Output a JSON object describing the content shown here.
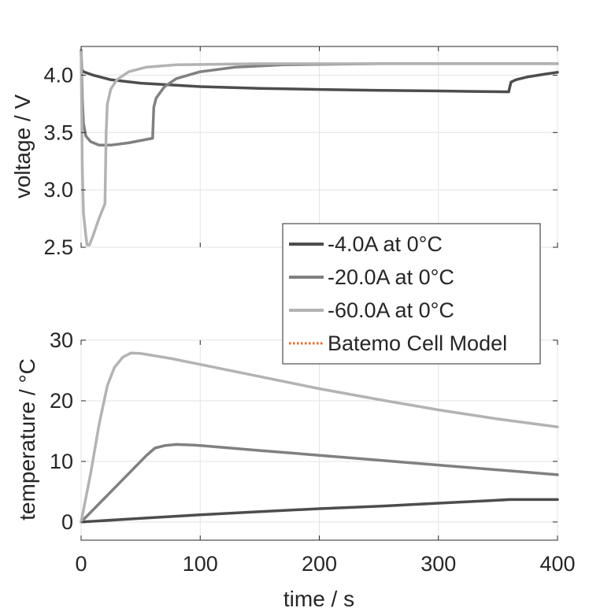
{
  "chart_data": [
    {
      "type": "line",
      "ylabel": "voltage / V",
      "xlabel": "",
      "xlim": [
        0,
        400
      ],
      "ylim": [
        2.5,
        4.25
      ],
      "grid": true,
      "xticks": [
        0,
        100,
        200,
        300,
        400
      ],
      "yticks": [
        2.5,
        3.0,
        3.5,
        4.0
      ],
      "ytick_labels": [
        "2.5",
        "3.0",
        "3.5",
        "4.0"
      ],
      "series": [
        {
          "name": "-4.0A at 0°C",
          "color": "#4d4d4d",
          "points": [
            [
              0,
              4.22
            ],
            [
              0.5,
              4.05
            ],
            [
              2,
              4.03
            ],
            [
              10,
              4.0
            ],
            [
              25,
              3.96
            ],
            [
              50,
              3.93
            ],
            [
              100,
              3.9
            ],
            [
              150,
              3.885
            ],
            [
              200,
              3.875
            ],
            [
              250,
              3.868
            ],
            [
              300,
              3.862
            ],
            [
              330,
              3.858
            ],
            [
              359,
              3.855
            ],
            [
              360,
              3.9
            ],
            [
              361,
              3.94
            ],
            [
              365,
              3.96
            ],
            [
              375,
              3.985
            ],
            [
              390,
              4.01
            ],
            [
              400,
              4.025
            ]
          ]
        },
        {
          "name": "-20.0A at 0°C",
          "color": "#808080",
          "points": [
            [
              0,
              4.22
            ],
            [
              1,
              3.8
            ],
            [
              2,
              3.58
            ],
            [
              4,
              3.47
            ],
            [
              8,
              3.42
            ],
            [
              15,
              3.39
            ],
            [
              25,
              3.39
            ],
            [
              40,
              3.41
            ],
            [
              55,
              3.44
            ],
            [
              60,
              3.45
            ],
            [
              61,
              3.72
            ],
            [
              63,
              3.8
            ],
            [
              70,
              3.9
            ],
            [
              80,
              3.97
            ],
            [
              100,
              4.03
            ],
            [
              130,
              4.07
            ],
            [
              170,
              4.09
            ],
            [
              250,
              4.1
            ],
            [
              400,
              4.1
            ]
          ]
        },
        {
          "name": "-60.0A at 0°C",
          "color": "#b3b3b3",
          "points": [
            [
              0,
              4.22
            ],
            [
              1,
              3.2
            ],
            [
              2,
              2.8
            ],
            [
              4,
              2.6
            ],
            [
              5,
              2.52
            ],
            [
              7,
              2.52
            ],
            [
              10,
              2.6
            ],
            [
              15,
              2.75
            ],
            [
              20,
              2.88
            ],
            [
              21,
              3.5
            ],
            [
              22,
              3.75
            ],
            [
              25,
              3.88
            ],
            [
              30,
              3.96
            ],
            [
              40,
              4.03
            ],
            [
              55,
              4.07
            ],
            [
              80,
              4.09
            ],
            [
              150,
              4.1
            ],
            [
              400,
              4.1
            ]
          ]
        }
      ]
    },
    {
      "type": "line",
      "ylabel": "temperature / °C",
      "xlabel": "time / s",
      "xlim": [
        0,
        400
      ],
      "ylim": [
        -3,
        30
      ],
      "grid": true,
      "xticks": [
        0,
        100,
        200,
        300,
        400
      ],
      "xtick_labels": [
        "0",
        "100",
        "200",
        "300",
        "400"
      ],
      "yticks": [
        0,
        10,
        20,
        30
      ],
      "ytick_labels": [
        "0",
        "10",
        "20",
        "30"
      ],
      "series": [
        {
          "name": "-4.0A at 0°C",
          "color": "#4d4d4d",
          "points": [
            [
              0,
              0
            ],
            [
              50,
              0.6
            ],
            [
              100,
              1.2
            ],
            [
              150,
              1.7
            ],
            [
              200,
              2.2
            ],
            [
              250,
              2.6
            ],
            [
              300,
              3.1
            ],
            [
              340,
              3.5
            ],
            [
              360,
              3.7
            ],
            [
              380,
              3.7
            ],
            [
              400,
              3.7
            ]
          ]
        },
        {
          "name": "-20.0A at 0°C",
          "color": "#808080",
          "points": [
            [
              0,
              0
            ],
            [
              20,
              4
            ],
            [
              40,
              8
            ],
            [
              55,
              11
            ],
            [
              62,
              12.2
            ],
            [
              70,
              12.6
            ],
            [
              80,
              12.8
            ],
            [
              95,
              12.7
            ],
            [
              150,
              11.8
            ],
            [
              200,
              11
            ],
            [
              250,
              10.2
            ],
            [
              300,
              9.4
            ],
            [
              350,
              8.6
            ],
            [
              400,
              7.8
            ]
          ]
        },
        {
          "name": "-60.0A at 0°C",
          "color": "#b3b3b3",
          "points": [
            [
              0,
              0
            ],
            [
              8,
              8
            ],
            [
              15,
              16
            ],
            [
              22,
              22.5
            ],
            [
              28,
              25.5
            ],
            [
              35,
              27.2
            ],
            [
              42,
              27.9
            ],
            [
              50,
              27.8
            ],
            [
              75,
              27
            ],
            [
              100,
              26
            ],
            [
              150,
              24
            ],
            [
              200,
              22
            ],
            [
              250,
              20.2
            ],
            [
              300,
              18.5
            ],
            [
              350,
              17
            ],
            [
              400,
              15.7
            ]
          ]
        }
      ]
    }
  ],
  "legend": {
    "placement": "right, between the two panels",
    "entries": [
      {
        "label": "-4.0A at 0°C",
        "color": "#4d4d4d",
        "style": "solid"
      },
      {
        "label": "-20.0A at 0°C",
        "color": "#808080",
        "style": "solid"
      },
      {
        "label": "-60.0A at 0°C",
        "color": "#b3b3b3",
        "style": "solid"
      },
      {
        "label": "Batemo Cell Model",
        "color": "#e8682a",
        "style": "dotted"
      }
    ]
  }
}
